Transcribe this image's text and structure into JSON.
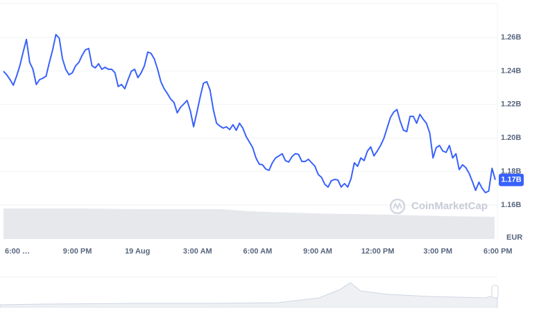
{
  "chart_data": {
    "type": "line",
    "color": "#3861fb",
    "values": [
      1.2398,
      1.2377,
      1.2348,
      1.2315,
      1.2369,
      1.2431,
      1.2513,
      1.2588,
      1.2451,
      1.241,
      1.2319,
      1.2348,
      1.2356,
      1.2369,
      1.2451,
      1.2526,
      1.2617,
      1.2596,
      1.2472,
      1.241,
      1.2377,
      1.2389,
      1.2431,
      1.2451,
      1.2493,
      1.2526,
      1.2534,
      1.2431,
      1.2418,
      1.2443,
      1.241,
      1.2422,
      1.241,
      1.241,
      1.2389,
      1.2307,
      1.2319,
      1.2294,
      1.2348,
      1.2398,
      1.241,
      1.236,
      1.2389,
      1.2431,
      1.2513,
      1.2505,
      1.2472,
      1.241,
      1.2336,
      1.2294,
      1.2265,
      1.2232,
      1.2212,
      1.215,
      1.2183,
      1.2203,
      1.2224,
      1.2162,
      1.2067,
      1.2154,
      1.2245,
      1.2327,
      1.2336,
      1.2286,
      1.217,
      1.2088,
      1.2071,
      1.2059,
      1.2067,
      1.205,
      1.2079,
      1.2046,
      1.2088,
      1.2059,
      1.2009,
      1.1976,
      1.1943,
      1.1881,
      1.1844,
      1.184,
      1.1815,
      1.1807,
      1.1852,
      1.1881,
      1.1893,
      1.1906,
      1.1865,
      1.1856,
      1.1889,
      1.1906,
      1.1902,
      1.186,
      1.186,
      1.1873,
      1.1852,
      1.1831,
      1.1782,
      1.1765,
      1.1724,
      1.1707,
      1.1745,
      1.1753,
      1.1749,
      1.1707,
      1.1728,
      1.1707,
      1.1757,
      1.1852,
      1.1831,
      1.1881,
      1.1865,
      1.1922,
      1.1947,
      1.1893,
      1.1922,
      1.1955,
      1.1997,
      1.2059,
      1.2121,
      1.2154,
      1.217,
      1.21,
      1.2046,
      1.2038,
      1.2129,
      1.2129,
      1.2088,
      1.2141,
      1.2112,
      1.2088,
      1.203,
      1.1881,
      1.1943,
      1.1955,
      1.1922,
      1.1914,
      1.1955,
      1.1881,
      1.1906,
      1.1811,
      1.184,
      1.1823,
      1.179,
      1.1741,
      1.1687,
      1.1736,
      1.1699,
      1.1674,
      1.1683,
      1.1819,
      1.175
    ],
    "current_label": "1.17B",
    "x_tick_labels": [
      "6:00 …",
      "9:00 PM",
      "19 Aug",
      "3:00 AM",
      "6:00 AM",
      "9:00 AM",
      "12:00 PM",
      "3:00 PM",
      "6:00 PM"
    ],
    "ylim": [
      1.14,
      1.28
    ],
    "yticks": [
      {
        "value": 1.16,
        "label": "1.16B"
      },
      {
        "value": 1.18,
        "label": "1.18B"
      },
      {
        "value": 1.2,
        "label": "1.20B"
      },
      {
        "value": 1.22,
        "label": "1.22B"
      },
      {
        "value": 1.24,
        "label": "1.24B"
      },
      {
        "value": 1.26,
        "label": "1.26B"
      }
    ],
    "currency": "EUR",
    "watermark": "CoinMarketCap",
    "grid": true
  }
}
